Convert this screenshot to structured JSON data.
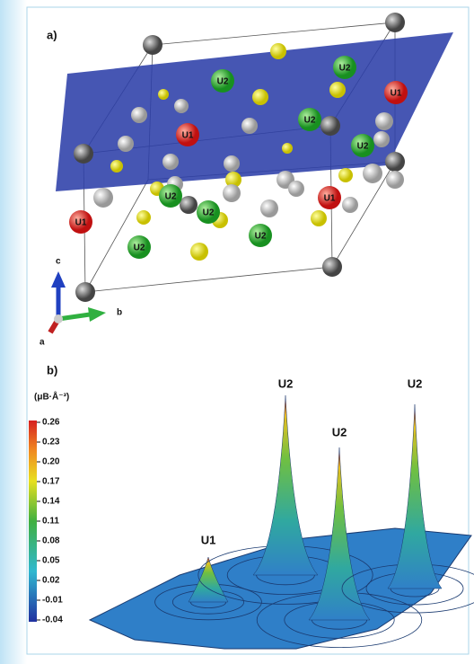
{
  "panel_a": {
    "label": "a)",
    "atom_labels": [
      "U2",
      "U2",
      "U1",
      "U2",
      "U1",
      "U2",
      "U2",
      "U2",
      "U1",
      "U1",
      "U2",
      "U2"
    ],
    "axes": {
      "c": "c",
      "b": "b",
      "a": "a"
    }
  },
  "panel_b": {
    "label": "b)",
    "colorbar": {
      "title": "(μB·Å⁻³)",
      "ticks": [
        "0.26",
        "0.23",
        "0.20",
        "0.17",
        "0.14",
        "0.11",
        "0.08",
        "0.05",
        "0.02",
        "-0.01",
        "-0.04"
      ]
    },
    "peak_labels": [
      "U1",
      "U2",
      "U2",
      "U2"
    ]
  }
}
